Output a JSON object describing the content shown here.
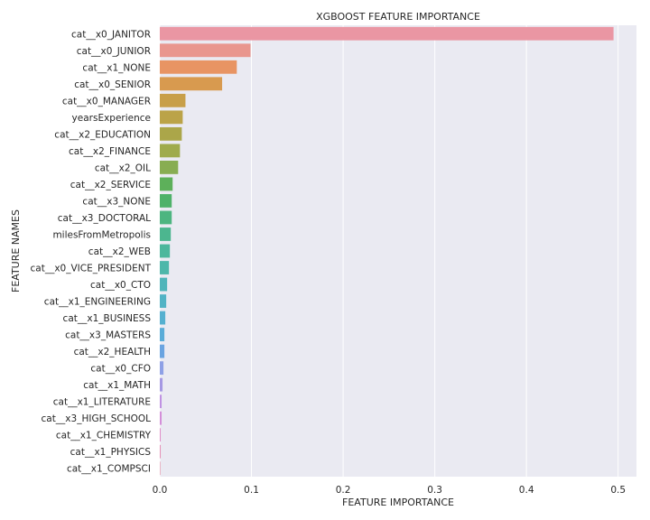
{
  "chart_data": {
    "type": "bar",
    "orientation": "horizontal",
    "title": "XGBOOST FEATURE IMPORTANCE",
    "xlabel": "FEATURE IMPORTANCE",
    "ylabel": "FEATURE NAMES",
    "xlim": [
      0,
      0.52
    ],
    "xticks": [
      "0.0",
      "0.1",
      "0.2",
      "0.3",
      "0.4",
      "0.5"
    ],
    "grid": true,
    "categories": [
      "cat__x0_JANITOR",
      "cat__x0_JUNIOR",
      "cat__x1_NONE",
      "cat__x0_SENIOR",
      "cat__x0_MANAGER",
      "yearsExperience",
      "cat__x2_EDUCATION",
      "cat__x2_FINANCE",
      "cat__x2_OIL",
      "cat__x2_SERVICE",
      "cat__x3_NONE",
      "cat__x3_DOCTORAL",
      "milesFromMetropolis",
      "cat__x2_WEB",
      "cat__x0_VICE_PRESIDENT",
      "cat__x0_CTO",
      "cat__x1_ENGINEERING",
      "cat__x1_BUSINESS",
      "cat__x3_MASTERS",
      "cat__x2_HEALTH",
      "cat__x0_CFO",
      "cat__x1_MATH",
      "cat__x1_LITERATURE",
      "cat__x3_HIGH_SCHOOL",
      "cat__x1_CHEMISTRY",
      "cat__x1_PHYSICS",
      "cat__x1_COMPSCI"
    ],
    "values": [
      0.495,
      0.099,
      0.084,
      0.068,
      0.028,
      0.025,
      0.024,
      0.022,
      0.02,
      0.014,
      0.013,
      0.013,
      0.012,
      0.011,
      0.01,
      0.008,
      0.007,
      0.006,
      0.005,
      0.005,
      0.004,
      0.003,
      0.002,
      0.002,
      0.001,
      0.001,
      0.0005
    ],
    "colors": [
      "#ea96a3",
      "#e9968e",
      "#e89463",
      "#d89a4f",
      "#c89f49",
      "#bba348",
      "#aba649",
      "#9fab4c",
      "#88ad52",
      "#5db05a",
      "#4eb269",
      "#4db580",
      "#4cb68f",
      "#4cb79c",
      "#4db7aa",
      "#4fb5ba",
      "#52b3c5",
      "#55b0d0",
      "#5aacd8",
      "#6aa4e1",
      "#8ea0e6",
      "#a598e3",
      "#c092e2",
      "#d48fd9",
      "#e08fc9",
      "#e592b7",
      "#e894a9"
    ]
  }
}
